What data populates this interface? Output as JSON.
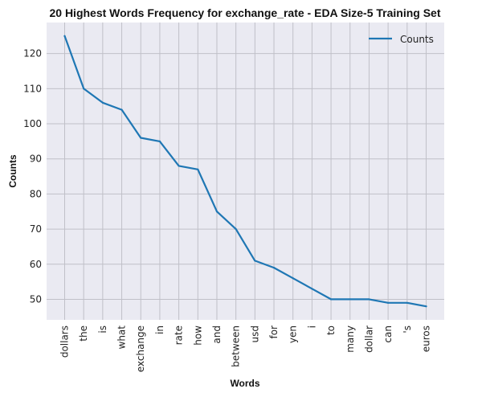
{
  "chart_data": {
    "type": "line",
    "title": "20 Highest Words Frequency for exchange_rate - EDA Size-5 Training Set",
    "xlabel": "Words",
    "ylabel": "Counts",
    "categories": [
      "dollars",
      "the",
      "is",
      "what",
      "exchange",
      "in",
      "rate",
      "how",
      "and",
      "between",
      "usd",
      "for",
      "yen",
      "i",
      "to",
      "many",
      "dollar",
      "can",
      "'s",
      "euros"
    ],
    "series": [
      {
        "name": "Counts",
        "values": [
          125,
          110,
          106,
          104,
          96,
          95,
          88,
          87,
          75,
          70,
          61,
          59,
          56,
          53,
          50,
          50,
          50,
          49,
          49,
          48
        ],
        "color": "#1f77b4"
      }
    ],
    "ylim": [
      44.15,
      128.85
    ],
    "yticks": [
      50,
      60,
      70,
      80,
      90,
      100,
      110,
      120
    ],
    "grid": true,
    "legend_position": "top-right",
    "background_color": "#eaeaf2"
  }
}
